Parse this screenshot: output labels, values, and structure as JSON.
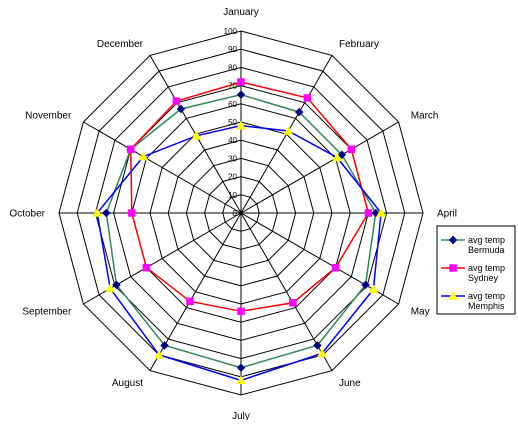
{
  "chart_data": {
    "type": "radar",
    "categories": [
      "January",
      "February",
      "March",
      "April",
      "May",
      "June",
      "July",
      "August",
      "September",
      "October",
      "November",
      "December"
    ],
    "rlim": [
      0,
      100
    ],
    "ticks": [
      "0",
      "10",
      "20",
      "30",
      "40",
      "50",
      "60",
      "70",
      "80",
      "90",
      "100"
    ],
    "grid": true,
    "legend_position": "right",
    "series": [
      {
        "name_lines": [
          "avg temp",
          "Bermuda"
        ],
        "color": "#2e8b57",
        "marker": "diamond",
        "marker_color": "#000080",
        "values": [
          65,
          64,
          64,
          74,
          79,
          84,
          85,
          84,
          79,
          74,
          70,
          66
        ]
      },
      {
        "name_lines": [
          "avg temp",
          "Sydney"
        ],
        "color": "#ff0000",
        "marker": "square",
        "marker_color": "#ff00ff",
        "values": [
          72,
          73,
          70,
          70,
          60,
          57,
          54,
          56,
          60,
          60,
          70,
          71
        ]
      },
      {
        "name_lines": [
          "avg temp",
          "Memphis"
        ],
        "color": "#0000ff",
        "marker": "triangle",
        "marker_color": "#ffff00",
        "values": [
          48,
          52,
          61,
          77,
          84,
          89,
          92,
          90,
          83,
          79,
          62,
          49
        ]
      }
    ]
  }
}
